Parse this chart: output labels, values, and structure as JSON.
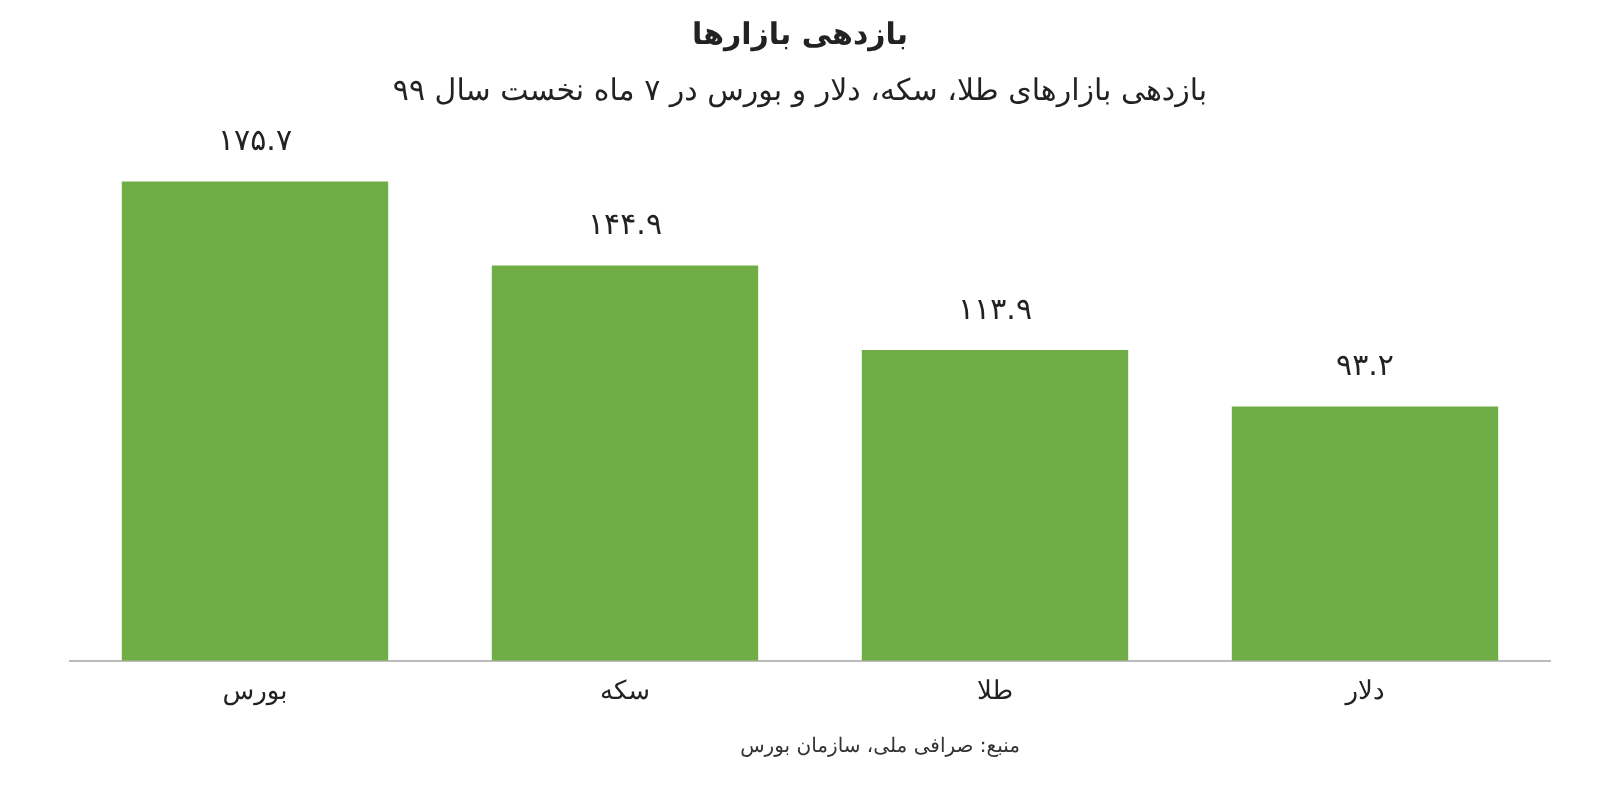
{
  "chart_data": {
    "type": "bar",
    "title": "بازدهی بازارها",
    "subtitle": "بازدهی بازارهای طلا، سکه، دلار و بورس در ۷ ماه نخست سال ۹۹",
    "categories": [
      "بورس",
      "سکه",
      "طلا",
      "دلار"
    ],
    "values": [
      175.7,
      144.9,
      113.9,
      93.2
    ],
    "value_labels": [
      "۱۷۵.۷",
      "۱۴۴.۹",
      "۱۱۳.۹",
      "۹۳.۲"
    ],
    "color": "#70ad47",
    "grid": false,
    "legend": false,
    "annotations": [
      "منبع: صرافی ملی، سازمان بورس"
    ]
  }
}
